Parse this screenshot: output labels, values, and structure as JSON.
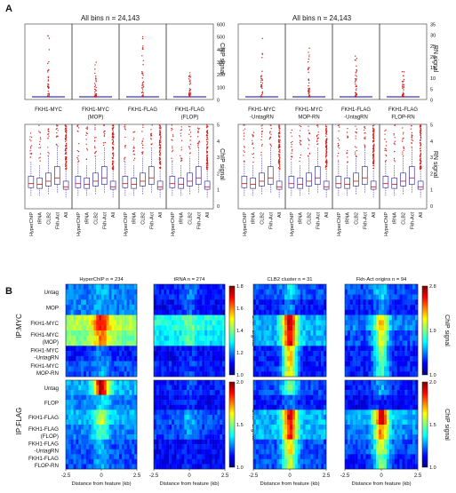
{
  "panelA": {
    "letter": "A",
    "left_title": "All bins n = 24,143",
    "right_title": "All bins n = 24,143",
    "left_top_axis_label": "ChIP signal",
    "right_top_axis_label": "RN signal",
    "left_bottom_axis_label": "ChIP signal",
    "right_bottom_axis_label": "RN signal",
    "left_top_ticks": [
      "0",
      "100",
      "200",
      "300",
      "400",
      "500",
      "600"
    ],
    "right_top_ticks": [
      "0",
      "5",
      "10",
      "15",
      "20",
      "25",
      "30",
      "35"
    ],
    "bottom_ticks": [
      "0",
      "1",
      "2",
      "3",
      "4",
      "5"
    ],
    "left_strain_labels": [
      [
        "FKH1-MYC"
      ],
      [
        "FKH1-MYC",
        "(MOP)"
      ],
      [
        "FKH1-FLAG"
      ],
      [
        "FKH1-FLAG",
        "(FLOP)"
      ]
    ],
    "right_strain_labels": [
      [
        "FKH1-MYC",
        "-UntagRN"
      ],
      [
        "FKH1-MYC",
        "MOP-RN"
      ],
      [
        "FKH1-FLAG",
        "-UntagRN"
      ],
      [
        "FKH1-FLAG",
        "FLOP-RN"
      ]
    ],
    "categories": [
      "HyperChIP",
      "tRNA",
      "CLB2",
      "Fkh-Act",
      "All"
    ]
  },
  "panelB": {
    "letter": "B",
    "col_titles": [
      "HyperChIP n = 234",
      "tRNA n = 274",
      "CLB2 cluster n = 31",
      "Fkh-Act origins n = 94"
    ],
    "top_group_label": "IP:MYC",
    "bottom_group_label": "IP:FLAG",
    "top_rows": [
      [
        "Untag"
      ],
      [
        "MOP"
      ],
      [
        "FKH1-MYC"
      ],
      [
        "FKH1-MYC",
        "(MOP)"
      ],
      [
        "FKH1-MYC",
        "-UntagRN"
      ],
      [
        "FKH1-MYC",
        "MOP-RN"
      ]
    ],
    "bottom_rows": [
      [
        "Untag"
      ],
      [
        "FLOP"
      ],
      [
        "FKH1-FLAG"
      ],
      [
        "FKH1-FLAG",
        "(FLOP)"
      ],
      [
        "FKH1-FLAG",
        "-UntagRN"
      ],
      [
        "FKH1-FLAG",
        "FLOP-RN"
      ]
    ],
    "cb1_ticks": [
      "1.0",
      "1.2",
      "1.4",
      "1.6",
      "1.8"
    ],
    "cb2_ticks": [
      "1.0",
      "1.9",
      "2.8"
    ],
    "cb3_ticks": [
      "1.0",
      "1.5",
      "2.0"
    ],
    "cb4_ticks": [
      "1.0",
      "1.5",
      "2.0"
    ],
    "cb_label": "ChIP signal",
    "x_ticks": [
      "-2.5",
      "0",
      "2.5"
    ],
    "xlabel": "Distance from feature (kb)"
  },
  "colors": {
    "box": "#3d3aa0",
    "outlier": "#cc2222",
    "median": "#d02020"
  }
}
